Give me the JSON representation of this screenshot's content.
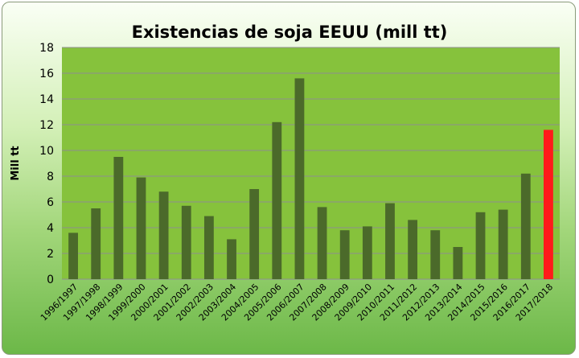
{
  "chart_data": {
    "type": "bar",
    "title": "Existencias de soja EEUU (mill tt)",
    "ylabel": "Mill tt",
    "xlabel": "",
    "ylim": [
      0,
      18
    ],
    "yticks": [
      0,
      2,
      4,
      6,
      8,
      10,
      12,
      14,
      16,
      18
    ],
    "grid": true,
    "categories": [
      "1996/1997",
      "1997/1998",
      "1998/1999",
      "1999/2000",
      "2000/2001",
      "2001/2002",
      "2002/2003",
      "2003/2004",
      "2004/2005",
      "2005/2006",
      "2006/2007",
      "2007/2008",
      "2008/2009",
      "2009/2010",
      "2010/2011",
      "2011/2012",
      "2012/2013",
      "2013/2014",
      "2014/2015",
      "2015/2016",
      "2016/2017",
      "2017/2018"
    ],
    "values": [
      3.6,
      5.5,
      9.5,
      7.9,
      6.8,
      5.7,
      4.9,
      3.1,
      7.0,
      12.2,
      15.6,
      5.6,
      3.8,
      4.1,
      5.9,
      4.6,
      3.8,
      2.5,
      5.2,
      5.4,
      8.2,
      11.6
    ],
    "colors": {
      "bar": "#4b6a2a",
      "highlight": "#ff1a1a",
      "plot_area": "#86c23c",
      "grid": "#8f8f8f"
    },
    "highlight_index": 21
  }
}
